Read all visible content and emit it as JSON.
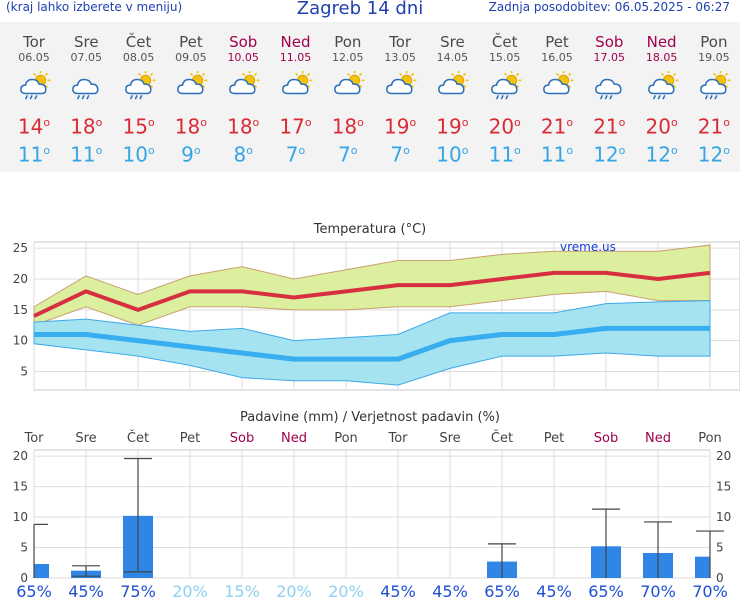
{
  "header": {
    "left": "(kraj lahko izberete v meniju)",
    "title": "Zagreb 14 dni",
    "right": "Zadnja posodobitev: 06.05.2025 - 06:27"
  },
  "days": [
    {
      "name": "Tor",
      "date": "06.05",
      "icon": "sun-cloud-rain-icon",
      "tmax": "14",
      "tmin": "11",
      "weekend": false
    },
    {
      "name": "Sre",
      "date": "07.05",
      "icon": "cloud-rain-icon",
      "tmax": "18",
      "tmin": "11",
      "weekend": false
    },
    {
      "name": "Čet",
      "date": "08.05",
      "icon": "sun-cloud-rain-icon",
      "tmax": "15",
      "tmin": "10",
      "weekend": false
    },
    {
      "name": "Pet",
      "date": "09.05",
      "icon": "sun-cloud-icon",
      "tmax": "18",
      "tmin": "9",
      "weekend": false
    },
    {
      "name": "Sob",
      "date": "10.05",
      "icon": "sun-cloud-icon",
      "tmax": "18",
      "tmin": "8",
      "weekend": true
    },
    {
      "name": "Ned",
      "date": "11.05",
      "icon": "sun-cloud-icon",
      "tmax": "17",
      "tmin": "7",
      "weekend": true
    },
    {
      "name": "Pon",
      "date": "12.05",
      "icon": "sun-cloud-icon",
      "tmax": "18",
      "tmin": "7",
      "weekend": false
    },
    {
      "name": "Tor",
      "date": "13.05",
      "icon": "sun-cloud-icon",
      "tmax": "19",
      "tmin": "7",
      "weekend": false
    },
    {
      "name": "Sre",
      "date": "14.05",
      "icon": "sun-cloud-icon",
      "tmax": "19",
      "tmin": "10",
      "weekend": false
    },
    {
      "name": "Čet",
      "date": "15.05",
      "icon": "sun-cloud-rain-icon",
      "tmax": "20",
      "tmin": "11",
      "weekend": false
    },
    {
      "name": "Pet",
      "date": "16.05",
      "icon": "sun-cloud-icon",
      "tmax": "21",
      "tmin": "11",
      "weekend": false
    },
    {
      "name": "Sob",
      "date": "17.05",
      "icon": "cloud-rain-icon",
      "tmax": "21",
      "tmin": "12",
      "weekend": true
    },
    {
      "name": "Ned",
      "date": "18.05",
      "icon": "sun-cloud-rain-icon",
      "tmax": "20",
      "tmin": "12",
      "weekend": true
    },
    {
      "name": "Pon",
      "date": "19.05",
      "icon": "sun-cloud-rain-icon",
      "tmax": "21",
      "tmin": "12",
      "weekend": false
    }
  ],
  "degree_sign": "o",
  "chart_data": [
    {
      "type": "line",
      "title": "Temperatura (°C)",
      "watermark": "vreme.us",
      "x": [
        "06.05",
        "07.05",
        "08.05",
        "09.05",
        "10.05",
        "11.05",
        "12.05",
        "13.05",
        "14.05",
        "15.05",
        "16.05",
        "17.05",
        "18.05",
        "19.05"
      ],
      "ylim": [
        2,
        26
      ],
      "yticks": [
        5,
        10,
        15,
        20,
        25
      ],
      "grid": true,
      "series": [
        {
          "role": "max",
          "values": [
            14,
            18,
            15,
            18,
            18,
            17,
            18,
            19,
            19,
            20,
            21,
            21,
            20,
            21
          ],
          "color": "#d63040"
        },
        {
          "role": "max-band-upper",
          "values": [
            15.5,
            20.5,
            17.5,
            20.5,
            22,
            20,
            21.5,
            23,
            23,
            24,
            24.5,
            24.5,
            24.5,
            25.5
          ],
          "color": "#dbee9c"
        },
        {
          "role": "max-band-lower",
          "values": [
            12.5,
            15.5,
            12.5,
            15.5,
            15.5,
            15,
            15,
            15.5,
            15.5,
            16.5,
            17.5,
            18,
            16.5,
            16.5
          ],
          "color": "#dbee9c"
        },
        {
          "role": "min",
          "values": [
            11,
            11,
            10,
            9,
            8,
            7,
            7,
            7,
            10,
            11,
            11,
            12,
            12,
            12
          ],
          "color": "#38aef0"
        },
        {
          "role": "min-band-upper",
          "values": [
            13,
            13.5,
            12.5,
            11.5,
            12,
            10,
            10.5,
            11,
            14.5,
            14.5,
            14.5,
            16,
            16.3,
            16.5
          ],
          "color": "#a8e4f2"
        },
        {
          "role": "min-band-lower",
          "values": [
            9.5,
            8.5,
            7.5,
            6,
            4,
            3.5,
            3.5,
            2.8,
            5.5,
            7.5,
            7.5,
            8,
            7.5,
            7.5
          ],
          "color": "#a8e4f2"
        }
      ]
    },
    {
      "type": "bar",
      "title": "Padavine (mm) / Verjetnost padavin (%)",
      "categories": [
        "Tor",
        "Sre",
        "Čet",
        "Pet",
        "Sob",
        "Ned",
        "Pon",
        "Tor",
        "Sre",
        "Čet",
        "Pet",
        "Sob",
        "Ned",
        "Pon"
      ],
      "weekend": [
        false,
        false,
        false,
        false,
        true,
        true,
        false,
        false,
        false,
        false,
        false,
        true,
        true,
        false
      ],
      "values": [
        2.3,
        1.2,
        10.2,
        0,
        0,
        0,
        0,
        0,
        0,
        2.7,
        0,
        5.2,
        4.1,
        3.5
      ],
      "error_high": [
        8.8,
        2.0,
        19.6,
        0,
        0,
        0,
        0,
        0,
        0,
        5.6,
        0,
        11.3,
        9.2,
        7.7
      ],
      "error_low": [
        0,
        0.3,
        1.0,
        0,
        0,
        0,
        0,
        0,
        0,
        0,
        0,
        0,
        0,
        0
      ],
      "probability": [
        "65%",
        "45%",
        "75%",
        "20%",
        "15%",
        "20%",
        "20%",
        "45%",
        "45%",
        "65%",
        "45%",
        "65%",
        "70%",
        "70%"
      ],
      "ylim": [
        0,
        21
      ],
      "yticks": [
        0,
        5,
        10,
        15,
        20
      ],
      "bar_color": "#2f86e6",
      "grid": true
    }
  ]
}
